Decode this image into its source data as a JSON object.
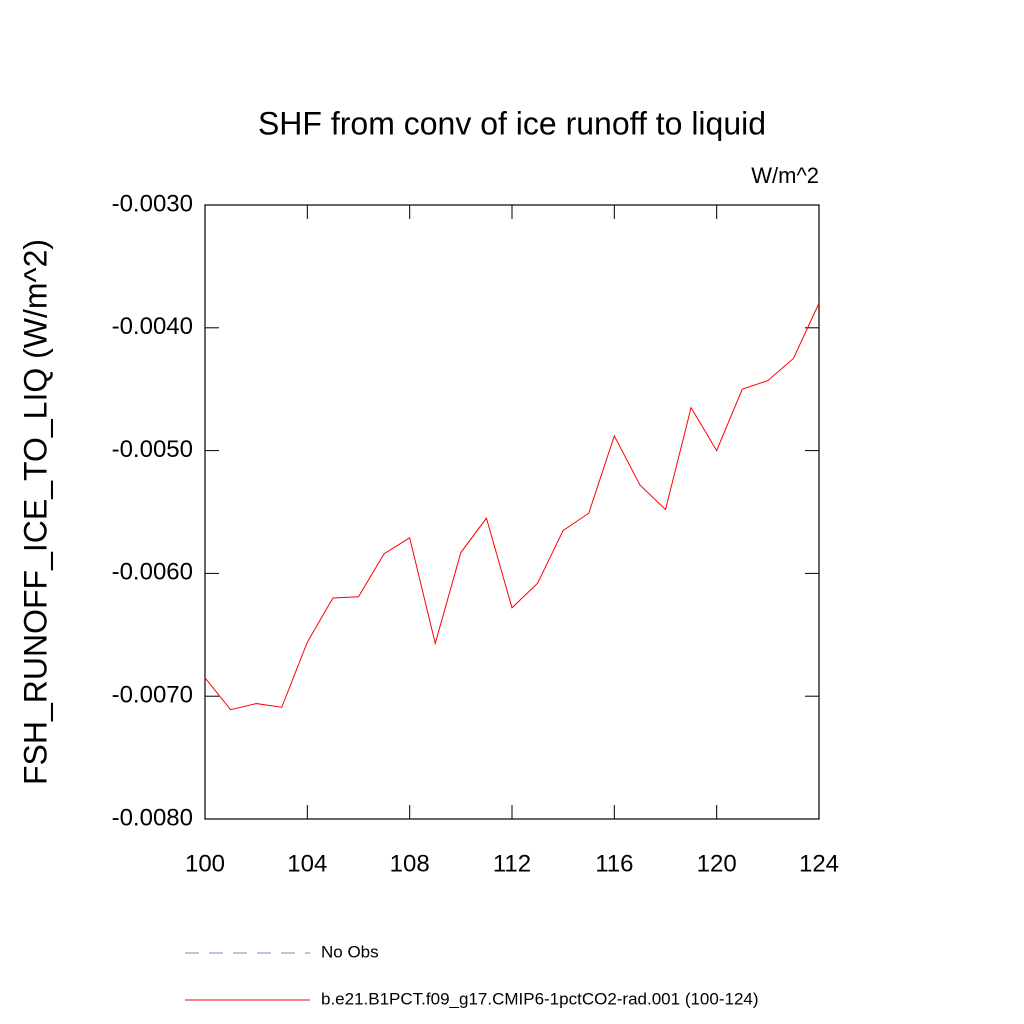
{
  "chart_data": {
    "type": "line",
    "title": "SHF from conv of ice runoff to liquid",
    "units": "W/m^2",
    "y_label": "FSH_RUNOFF_ICE_TO_LIQ  (W/m^2)",
    "x": [
      100,
      101,
      102,
      103,
      104,
      105,
      106,
      107,
      108,
      109,
      110,
      111,
      112,
      113,
      114,
      115,
      116,
      117,
      118,
      119,
      120,
      121,
      122,
      123,
      124
    ],
    "series": [
      {
        "name": "b.e21.B1PCT.f09_g17.CMIP6-1pctCO2-rad.001 (100-124)",
        "color": "#ff0000",
        "values": [
          -0.00685,
          -0.00711,
          -0.00706,
          -0.00709,
          -0.00656,
          -0.0062,
          -0.00619,
          -0.00584,
          -0.00571,
          -0.00657,
          -0.00583,
          -0.00555,
          -0.00628,
          -0.00608,
          -0.00565,
          -0.00551,
          -0.00488,
          -0.00528,
          -0.00548,
          -0.00465,
          -0.005,
          -0.0045,
          -0.00443,
          -0.00425,
          -0.0038
        ]
      }
    ],
    "legend_entries": [
      {
        "name": "No Obs",
        "color": "#8080c0",
        "style": "dashed"
      }
    ],
    "xlim": [
      100,
      124
    ],
    "xticks": [
      100,
      104,
      108,
      112,
      116,
      120,
      124
    ],
    "ylim": [
      -0.008,
      -0.003
    ],
    "yticks": [
      {
        "value": -0.008,
        "label": "-0.0080"
      },
      {
        "value": -0.007,
        "label": "-0.0070"
      },
      {
        "value": -0.006,
        "label": "-0.0060"
      },
      {
        "value": -0.005,
        "label": "-0.0050"
      },
      {
        "value": -0.004,
        "label": "-0.0040"
      },
      {
        "value": -0.003,
        "label": "-0.0030"
      }
    ]
  }
}
